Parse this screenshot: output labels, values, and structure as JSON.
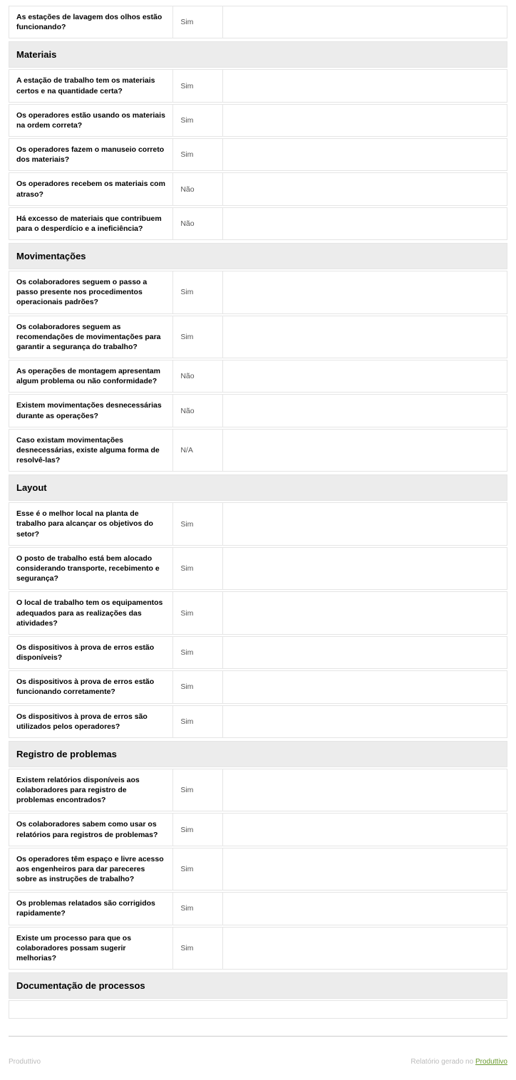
{
  "initialRow": {
    "question": "As estações de lavagem dos olhos estão funcionando?",
    "answer": "Sim"
  },
  "sections": [
    {
      "title": "Materiais",
      "rows": [
        {
          "question": "A estação de trabalho tem os materiais certos e na quantidade certa?",
          "answer": "Sim"
        },
        {
          "question": "Os operadores estão usando os materiais na ordem correta?",
          "answer": "Sim"
        },
        {
          "question": "Os operadores fazem o manuseio correto dos materiais?",
          "answer": "Sim"
        },
        {
          "question": "Os operadores recebem os materiais com atraso?",
          "answer": "Não"
        },
        {
          "question": "Há excesso de materiais que contribuem para o desperdício e a ineficiência?",
          "answer": "Não"
        }
      ]
    },
    {
      "title": "Movimentações",
      "rows": [
        {
          "question": "Os colaboradores seguem o passo a passo presente nos procedimentos operacionais padrões?",
          "answer": "Sim"
        },
        {
          "question": "Os colaboradores seguem as recomendações de movimentações para garantir a segurança do trabalho?",
          "answer": "Sim"
        },
        {
          "question": "As operações de montagem apresentam algum problema ou não conformidade?",
          "answer": "Não"
        },
        {
          "question": "Existem movimentações desnecessárias durante as operações?",
          "answer": "Não"
        },
        {
          "question": "Caso existam movimentações desnecessárias, existe alguma forma de resolvê-las?",
          "answer": "N/A"
        }
      ]
    },
    {
      "title": "Layout",
      "rows": [
        {
          "question": "Esse é o melhor local na planta de trabalho para alcançar os objetivos do setor?",
          "answer": "Sim"
        },
        {
          "question": "O posto de trabalho está bem alocado considerando transporte, recebimento e segurança?",
          "answer": "Sim"
        },
        {
          "question": "O local de trabalho tem os equipamentos adequados para as realizações das atividades?",
          "answer": "Sim"
        },
        {
          "question": "Os dispositivos à prova de erros estão disponíveis?",
          "answer": "Sim"
        },
        {
          "question": "Os dispositivos à prova de erros estão funcionando corretamente?",
          "answer": "Sim"
        },
        {
          "question": "Os dispositivos à prova de erros são utilizados pelos operadores?",
          "answer": "Sim"
        }
      ]
    },
    {
      "title": "Registro de problemas",
      "rows": [
        {
          "question": "Existem relatórios disponíveis aos colaboradores para registro de problemas encontrados?",
          "answer": "Sim"
        },
        {
          "question": "Os colaboradores sabem como usar os relatórios para registros de problemas?",
          "answer": "Sim"
        },
        {
          "question": "Os operadores têm espaço e livre acesso aos engenheiros para dar pareceres sobre as instruções de trabalho?",
          "answer": "Sim"
        },
        {
          "question": "Os problemas relatados são corrigidos rapidamente?",
          "answer": "Sim"
        },
        {
          "question": "Existe um processo para que os colaboradores possam sugerir melhorias?",
          "answer": "Sim"
        }
      ]
    },
    {
      "title": "Documentação de processos",
      "rows": []
    }
  ],
  "footer": {
    "left": "Produttivo",
    "rightPrefix": "Relatório gerado no ",
    "rightLink": "Produttivo"
  },
  "style": {
    "header_bg": "#ececec",
    "border_color": "#e5e5e5",
    "link_color": "#6a9a2f",
    "text_color": "#000000",
    "muted_color": "#bbbbbb"
  }
}
